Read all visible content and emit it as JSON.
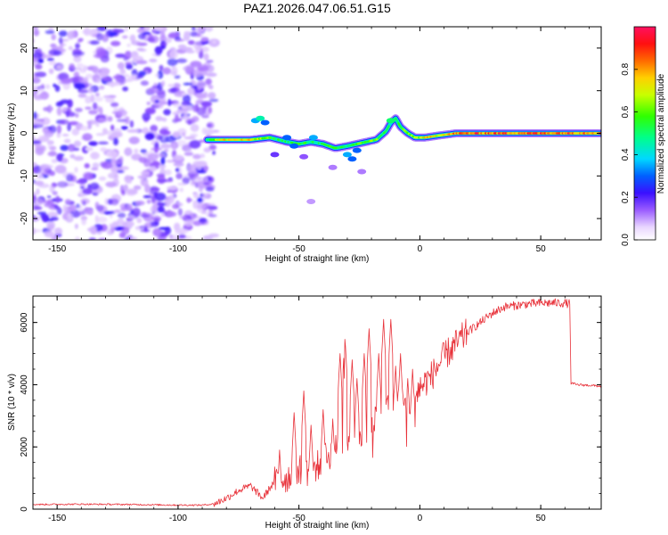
{
  "title": "PAZ1.2026.047.06.51.G15",
  "chart_data": [
    {
      "type": "heatmap",
      "xlabel": "Height of straight line (km)",
      "ylabel": "Frequency (Hz)",
      "xlim": [
        -160,
        75
      ],
      "ylim": [
        -25,
        25
      ],
      "xticks": [
        -150,
        -100,
        -50,
        0,
        50
      ],
      "yticks": [
        -20,
        -10,
        0,
        10,
        20
      ],
      "colorbar": {
        "label": "Normalized spectral amplitude",
        "range": [
          0,
          1
        ],
        "ticks": [
          "0.0",
          "0.2",
          "0.4",
          "0.6",
          "0.8"
        ]
      },
      "noise_region_x": [
        -160,
        -85
      ],
      "ridge": {
        "x": [
          -88,
          -80,
          -70,
          -62,
          -55,
          -50,
          -45,
          -40,
          -35,
          -30,
          -26,
          -22,
          -18,
          -14,
          -12,
          -10,
          -8,
          -5,
          -2,
          2,
          8,
          15,
          25,
          40,
          55,
          75
        ],
        "frequency": [
          -1.5,
          -1.5,
          -1.5,
          -1,
          -2,
          -2.5,
          -2,
          -2.5,
          -3.5,
          -3,
          -2.5,
          -2,
          -1.5,
          0.5,
          2.5,
          3.5,
          1.5,
          0,
          -1,
          -1,
          -0.5,
          0,
          0,
          0,
          0,
          0
        ],
        "amplitude": [
          0.55,
          0.75,
          0.7,
          0.55,
          0.5,
          0.55,
          0.5,
          0.5,
          0.55,
          0.5,
          0.55,
          0.6,
          0.6,
          0.5,
          0.45,
          0.5,
          0.55,
          0.6,
          0.65,
          0.7,
          0.75,
          0.8,
          0.85,
          0.85,
          0.85,
          0.85
        ]
      }
    },
    {
      "type": "line",
      "xlabel": "Height of straight line (km)",
      "ylabel": "SNR (10 * v/v)",
      "xlim": [
        -160,
        75
      ],
      "ylim": [
        0,
        6850
      ],
      "xticks": [
        -150,
        -100,
        -50,
        0,
        50
      ],
      "yticks": [
        0,
        2000,
        4000,
        6000
      ],
      "color": "#e8323a",
      "series": [
        {
          "name": "SNR",
          "x": [
            -160,
            -140,
            -120,
            -100,
            -90,
            -85,
            -80,
            -75,
            -70,
            -65,
            -60,
            -55,
            -50,
            -45,
            -40,
            -35,
            -30,
            -25,
            -20,
            -15,
            -10,
            -5,
            0,
            5,
            10,
            15,
            20,
            25,
            30,
            35,
            40,
            45,
            50,
            55,
            60,
            62,
            62.5,
            65,
            70,
            75
          ],
          "values": [
            150,
            160,
            150,
            130,
            130,
            170,
            350,
            600,
            750,
            350,
            900,
            1000,
            1300,
            1200,
            1600,
            1900,
            2200,
            2400,
            2800,
            3400,
            3600,
            3300,
            3900,
            4300,
            4900,
            5300,
            5700,
            6000,
            6300,
            6500,
            6550,
            6600,
            6620,
            6630,
            6620,
            6600,
            4050,
            4000,
            3980,
            3950
          ]
        }
      ],
      "spikes": {
        "x": [
          -58,
          -52,
          -48,
          -45,
          -40,
          -36,
          -33,
          -31,
          -28,
          -26,
          -23,
          -21,
          -17,
          -15,
          -12,
          -10,
          -8,
          -5,
          -3
        ],
        "values": [
          1900,
          3100,
          3800,
          2700,
          3200,
          2900,
          5000,
          5600,
          4800,
          4200,
          5000,
          5800,
          5000,
          6100,
          6100,
          4600,
          5000,
          4200,
          4500
        ]
      }
    }
  ]
}
